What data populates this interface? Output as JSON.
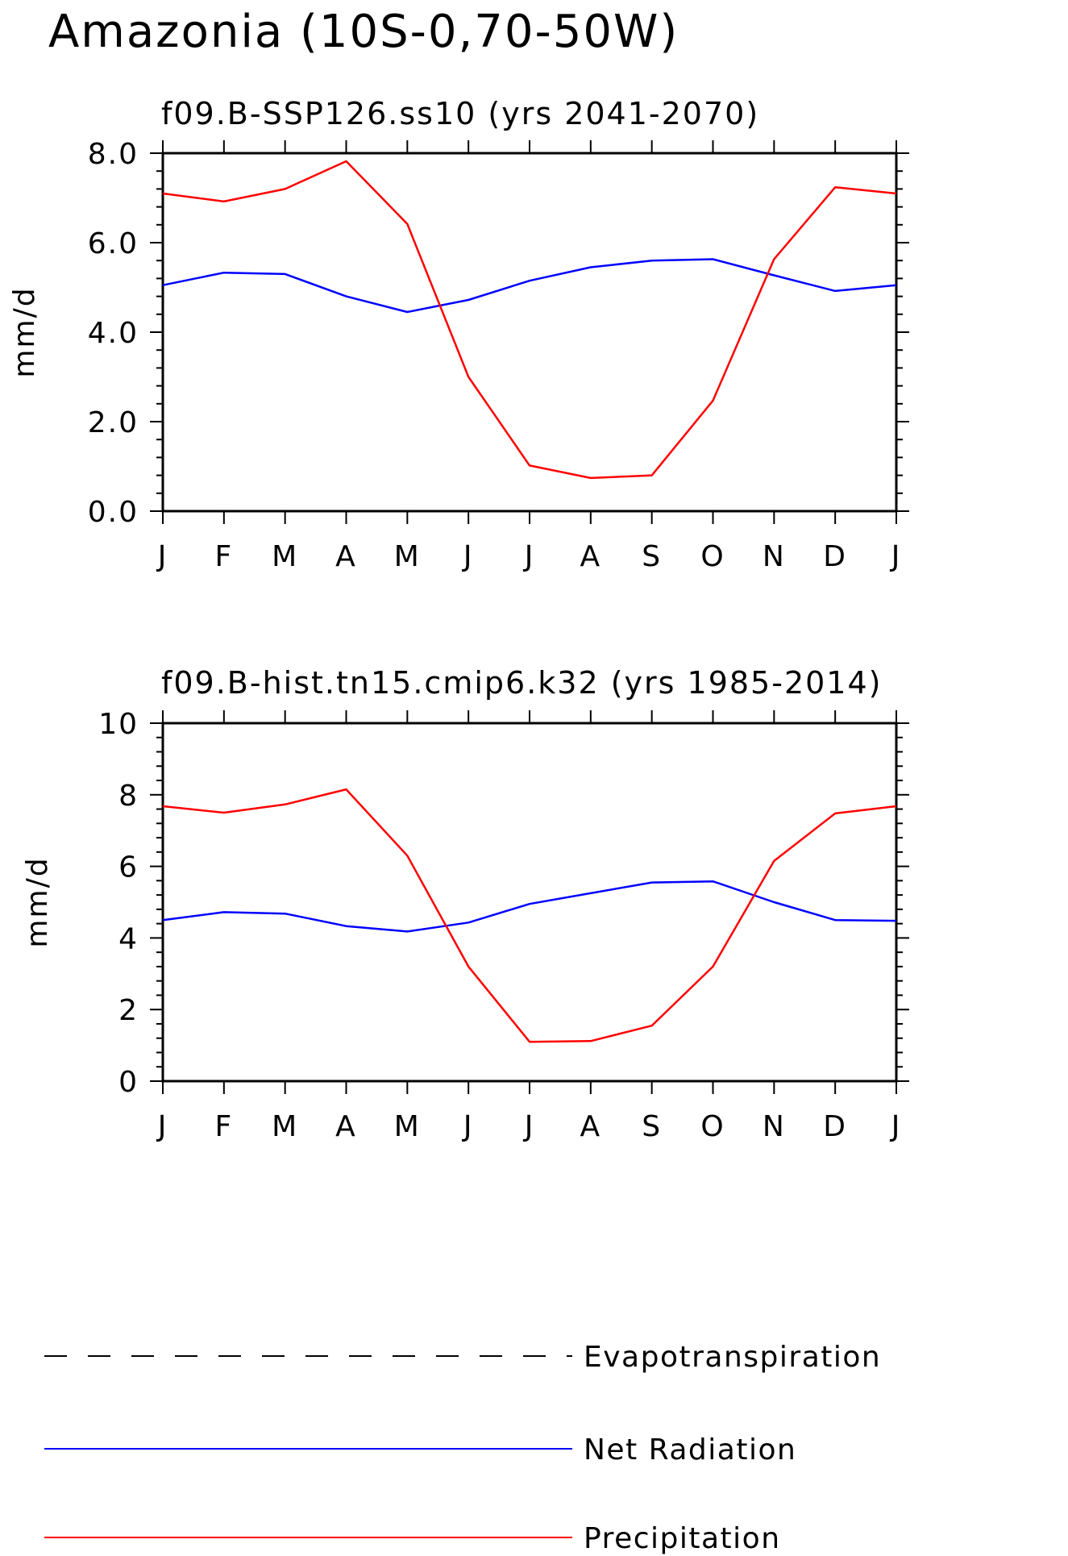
{
  "page_title": "Amazonia (10S-0,70-50W)",
  "legend": [
    {
      "name": "Evapotranspiration",
      "color": "#000000",
      "dash": true
    },
    {
      "name": "Net Radiation",
      "color": "#0000ff",
      "dash": false
    },
    {
      "name": "Precipitation",
      "color": "#ff0000",
      "dash": false
    }
  ],
  "chart_data": [
    {
      "type": "line",
      "title": "f09.B-SSP126.ss10 (yrs 2041-2070)",
      "xlabel": "",
      "ylabel": "mm/d",
      "categories": [
        "J",
        "F",
        "M",
        "A",
        "M",
        "J",
        "J",
        "A",
        "S",
        "O",
        "N",
        "D",
        "J"
      ],
      "ylim": [
        0,
        8
      ],
      "yticks": [
        0,
        2,
        4,
        6,
        8
      ],
      "ytick_labels": [
        "0.0",
        "2.0",
        "4.0",
        "6.0",
        "8.0"
      ],
      "grid": false,
      "series": [
        {
          "name": "Net Radiation",
          "color": "#0000ff",
          "values": [
            5.05,
            5.33,
            5.3,
            4.8,
            4.45,
            4.72,
            5.15,
            5.45,
            5.6,
            5.63,
            5.27,
            4.92,
            5.05
          ]
        },
        {
          "name": "Precipitation",
          "color": "#ff0000",
          "values": [
            7.1,
            6.92,
            7.2,
            7.82,
            6.42,
            3.0,
            1.02,
            0.74,
            0.8,
            2.47,
            5.63,
            7.24,
            7.1
          ]
        }
      ]
    },
    {
      "type": "line",
      "title": "f09.B-hist.tn15.cmip6.k32 (yrs 1985-2014)",
      "xlabel": "",
      "ylabel": "mm/d",
      "categories": [
        "J",
        "F",
        "M",
        "A",
        "M",
        "J",
        "J",
        "A",
        "S",
        "O",
        "N",
        "D",
        "J"
      ],
      "ylim": [
        0,
        10
      ],
      "yticks": [
        0,
        2,
        4,
        6,
        8,
        10
      ],
      "ytick_labels": [
        "0",
        "2",
        "4",
        "6",
        "8",
        "10"
      ],
      "grid": false,
      "series": [
        {
          "name": "Net Radiation",
          "color": "#0000ff",
          "values": [
            4.5,
            4.72,
            4.68,
            4.33,
            4.18,
            4.43,
            4.95,
            5.25,
            5.55,
            5.58,
            5.0,
            4.5,
            4.48
          ]
        },
        {
          "name": "Precipitation",
          "color": "#ff0000",
          "values": [
            7.68,
            7.5,
            7.73,
            8.15,
            6.3,
            3.2,
            1.1,
            1.12,
            1.55,
            3.2,
            6.15,
            7.48,
            7.68
          ]
        }
      ]
    }
  ]
}
